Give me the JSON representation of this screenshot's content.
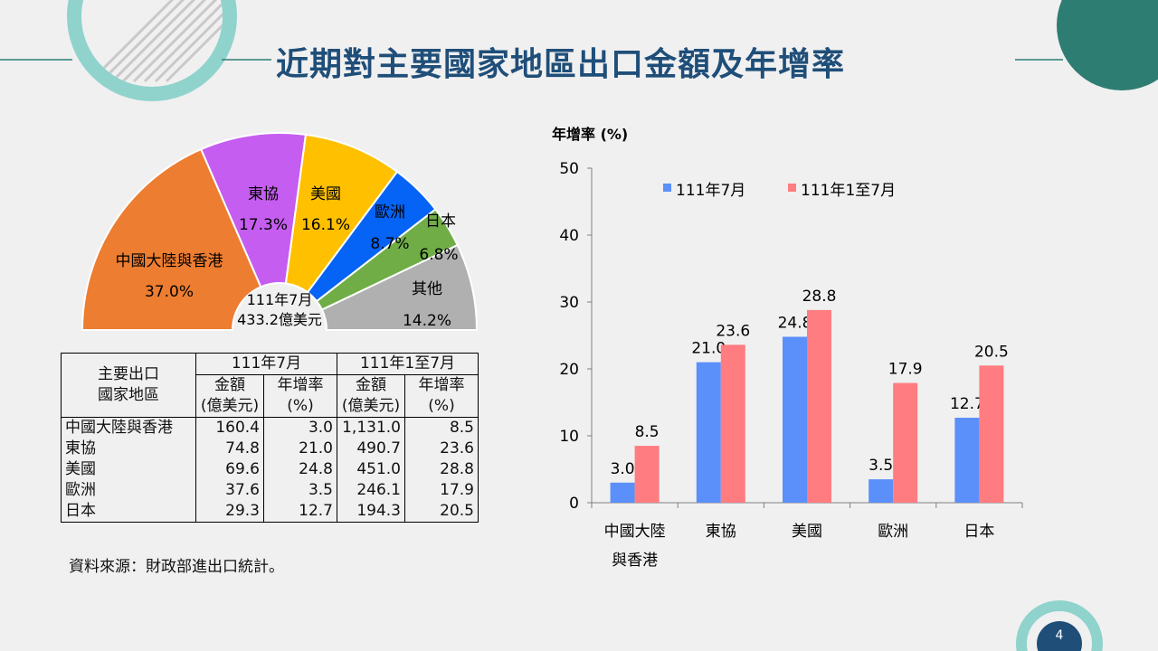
{
  "title": "近期對主要國家地區出口金額及年增率",
  "page_number": "4",
  "source": "資料來源：財政部進出口統計。",
  "pie": {
    "center_line1": "111年7月",
    "center_line2": "433.2億美元",
    "slices": [
      {
        "label": "中國大陸與香港",
        "percent_label": "37.0%",
        "value": 37.0,
        "color": "#ed7d31"
      },
      {
        "label": "東協",
        "percent_label": "17.3%",
        "value": 17.3,
        "color": "#c55df0"
      },
      {
        "label": "美國",
        "percent_label": "16.1%",
        "value": 16.1,
        "color": "#ffc000"
      },
      {
        "label": "歐洲",
        "percent_label": "8.7%",
        "value": 8.7,
        "color": "#0563f5"
      },
      {
        "label": "日本",
        "percent_label": "6.8%",
        "value": 6.8,
        "color": "#70ad47"
      },
      {
        "label": "其他",
        "percent_label": "14.2%",
        "value": 14.2,
        "color": "#b0b0b0"
      }
    ]
  },
  "table": {
    "header_region": [
      "主要出口",
      "國家地區"
    ],
    "period1": "111年7月",
    "period2": "111年1至7月",
    "col_amount": [
      "金額",
      "(億美元)"
    ],
    "col_growth": [
      "年增率",
      "(%)"
    ],
    "rows": [
      {
        "region": "中國大陸與香港",
        "amt1": "160.4",
        "gr1": "3.0",
        "amt2": "1,131.0",
        "gr2": "8.5"
      },
      {
        "region": "東協",
        "amt1": "74.8",
        "gr1": "21.0",
        "amt2": "490.7",
        "gr2": "23.6"
      },
      {
        "region": "美國",
        "amt1": "69.6",
        "gr1": "24.8",
        "amt2": "451.0",
        "gr2": "28.8"
      },
      {
        "region": "歐洲",
        "amt1": "37.6",
        "gr1": "3.5",
        "amt2": "246.1",
        "gr2": "17.9"
      },
      {
        "region": "日本",
        "amt1": "29.3",
        "gr1": "12.7",
        "amt2": "194.3",
        "gr2": "20.5"
      }
    ]
  },
  "chart_data": [
    {
      "type": "pie",
      "categories": [
        "中國大陸與香港",
        "東協",
        "美國",
        "歐洲",
        "日本",
        "其他"
      ],
      "values": [
        37.0,
        17.3,
        16.1,
        8.7,
        6.8,
        14.2
      ]
    },
    {
      "type": "bar",
      "ylabel": "年增率 (%)",
      "ylim": [
        0,
        50
      ],
      "yticks": [
        0,
        10,
        20,
        30,
        40,
        50
      ],
      "categories": [
        [
          "中國大陸",
          "與香港"
        ],
        [
          "東協"
        ],
        [
          "美國"
        ],
        [
          "歐洲"
        ],
        [
          "日本"
        ]
      ],
      "legend_position": "top",
      "series": [
        {
          "name": "111年7月",
          "color": "#5b8ff9",
          "values": [
            3.0,
            21.0,
            24.8,
            3.5,
            12.7
          ]
        },
        {
          "name": "111年1至7月",
          "color": "#ff7c80",
          "values": [
            8.5,
            23.6,
            28.8,
            17.9,
            20.5
          ]
        }
      ]
    }
  ],
  "colors": {
    "title": "#1f4e79",
    "teal_dark": "#2e7d73",
    "teal_light": "#8fd3cc",
    "page_badge": "#1f4e79"
  }
}
